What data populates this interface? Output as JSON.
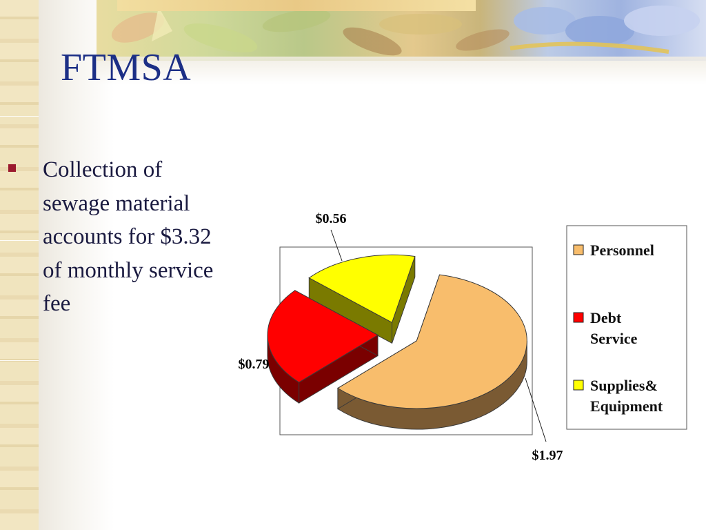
{
  "slide": {
    "title": "FTMSA",
    "bullet": "Collection of sewage material accounts for $3.32 of monthly service fee"
  },
  "colors": {
    "title": "#1c2f86",
    "bullet_marker": "#9b1a2e",
    "text": "#1a1a40"
  },
  "chart_data": {
    "type": "pie",
    "style": "3d-exploded",
    "categories": [
      "Personnel",
      "Debt Service",
      "Supplies&Equipment"
    ],
    "values": [
      1.97,
      0.79,
      0.56
    ],
    "data_labels": [
      "$1.97",
      "$0.79",
      "$0.56"
    ],
    "legend": {
      "position": "right",
      "entries": [
        {
          "lines": [
            "Personnel"
          ]
        },
        {
          "lines": [
            "Debt",
            "Service"
          ]
        },
        {
          "lines": [
            "Supplies&",
            "Equipment"
          ]
        }
      ]
    },
    "colors": [
      "#f8bd6c",
      "#ff0000",
      "#ffff00"
    ],
    "side_colors": [
      "#7a5a33",
      "#7a0000",
      "#7a7a00"
    ]
  }
}
